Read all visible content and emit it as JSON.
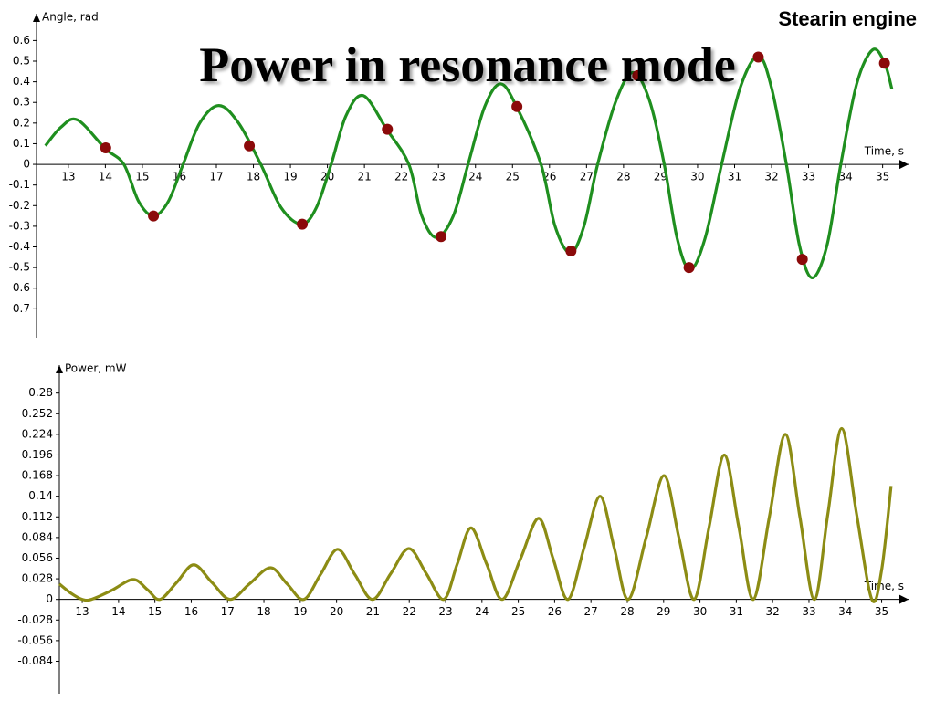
{
  "slide": {
    "label": "Stearin engine",
    "title": "Power in resonance mode"
  },
  "chart_data": [
    {
      "type": "line",
      "y_label": "Angle, rad",
      "x_label": "Time, s",
      "xlim": [
        12.14,
        35.7
      ],
      "ylim": [
        -0.84,
        0.73
      ],
      "xticks": [
        13,
        14,
        15,
        16,
        17,
        18,
        19,
        20,
        21,
        22,
        23,
        24,
        25,
        26,
        27,
        28,
        29,
        30,
        31,
        32,
        33,
        34,
        35
      ],
      "yticks": [
        0.6,
        0.5,
        0.4,
        0.3,
        0.2,
        0.1,
        0,
        -0.1,
        -0.2,
        -0.3,
        -0.4,
        -0.5,
        -0.6,
        -0.7
      ],
      "series": [
        {
          "type": "line",
          "color": "#1f8f1f",
          "x": [
            12.38,
            12.8,
            13.25,
            14.0,
            14.5,
            14.9,
            15.3,
            15.7,
            16.1,
            16.55,
            17.07,
            17.6,
            18.2,
            18.75,
            19.3,
            19.7,
            20.1,
            20.5,
            20.97,
            21.6,
            22.2,
            22.55,
            22.95,
            23.4,
            23.8,
            24.25,
            24.68,
            25.12,
            25.77,
            26.15,
            26.56,
            26.93,
            27.3,
            27.8,
            28.26,
            28.7,
            29.1,
            29.45,
            29.8,
            30.2,
            30.65,
            31.15,
            31.64,
            32.0,
            32.4,
            32.75,
            33.1,
            33.5,
            33.87,
            34.3,
            34.73,
            35.05,
            35.25
          ],
          "values": [
            0.09,
            0.18,
            0.215,
            0.076,
            0,
            -0.18,
            -0.25,
            -0.18,
            0,
            0.2,
            0.285,
            0.2,
            0,
            -0.21,
            -0.29,
            -0.21,
            0,
            0.235,
            0.333,
            0.17,
            0,
            -0.25,
            -0.355,
            -0.25,
            0,
            0.28,
            0.39,
            0.276,
            0,
            -0.3,
            -0.43,
            -0.3,
            0,
            0.31,
            0.445,
            0.31,
            0,
            -0.36,
            -0.51,
            -0.36,
            0,
            0.37,
            0.525,
            0.37,
            0,
            -0.39,
            -0.55,
            -0.39,
            0,
            0.39,
            0.555,
            0.493,
            0.365
          ]
        },
        {
          "type": "scatter",
          "color": "#8b0a0a",
          "x": [
            14.01,
            15.3,
            17.89,
            19.32,
            21.62,
            23.07,
            25.12,
            26.58,
            28.38,
            29.77,
            31.64,
            32.83,
            35.05
          ],
          "values": [
            0.08,
            -0.25,
            0.09,
            -0.29,
            0.17,
            -0.35,
            0.28,
            -0.42,
            0.43,
            -0.5,
            0.52,
            -0.46,
            0.49
          ]
        }
      ]
    },
    {
      "type": "line",
      "y_label": "Power, mW",
      "x_label": "Time, s",
      "xlim": [
        12.37,
        35.74
      ],
      "ylim": [
        -0.128,
        0.318
      ],
      "xticks": [
        13,
        14,
        15,
        16,
        17,
        18,
        19,
        20,
        21,
        22,
        23,
        24,
        25,
        26,
        27,
        28,
        29,
        30,
        31,
        32,
        33,
        34,
        35
      ],
      "yticks": [
        0.28,
        0.252,
        0.224,
        0.196,
        0.168,
        0.14,
        0.112,
        0.084,
        0.056,
        0.028,
        0,
        -0.028,
        -0.056,
        -0.084
      ],
      "series": [
        {
          "type": "line",
          "color": "#8c8c14",
          "x": [
            12.37,
            12.7,
            13.0,
            13.25,
            13.8,
            14.4,
            14.8,
            15.14,
            15.6,
            16.07,
            16.57,
            17.07,
            17.6,
            18.18,
            18.64,
            19.1,
            19.56,
            20.03,
            20.5,
            20.99,
            21.49,
            21.99,
            22.47,
            22.95,
            23.32,
            23.7,
            24.13,
            24.56,
            25.06,
            25.56,
            25.96,
            26.37,
            26.81,
            27.25,
            27.64,
            28.03,
            28.52,
            29.01,
            29.42,
            29.84,
            30.25,
            30.67,
            31.07,
            31.47,
            31.91,
            32.35,
            32.75,
            33.15,
            33.52,
            33.9,
            34.31,
            34.73,
            35.0,
            35.26
          ],
          "values": [
            0.021,
            0.008,
            0,
            0,
            0.012,
            0.027,
            0.013,
            0,
            0.023,
            0.047,
            0.023,
            0,
            0.021,
            0.043,
            0.021,
            0,
            0.034,
            0.068,
            0.034,
            0,
            0.035,
            0.069,
            0.035,
            0,
            0.048,
            0.097,
            0.048,
            0,
            0.055,
            0.11,
            0.055,
            0,
            0.07,
            0.14,
            0.07,
            0,
            0.084,
            0.168,
            0.084,
            0,
            0.098,
            0.196,
            0.098,
            0,
            0.112,
            0.224,
            0.112,
            0,
            0.116,
            0.232,
            0.116,
            0,
            0.04,
            0.154
          ]
        }
      ]
    }
  ]
}
